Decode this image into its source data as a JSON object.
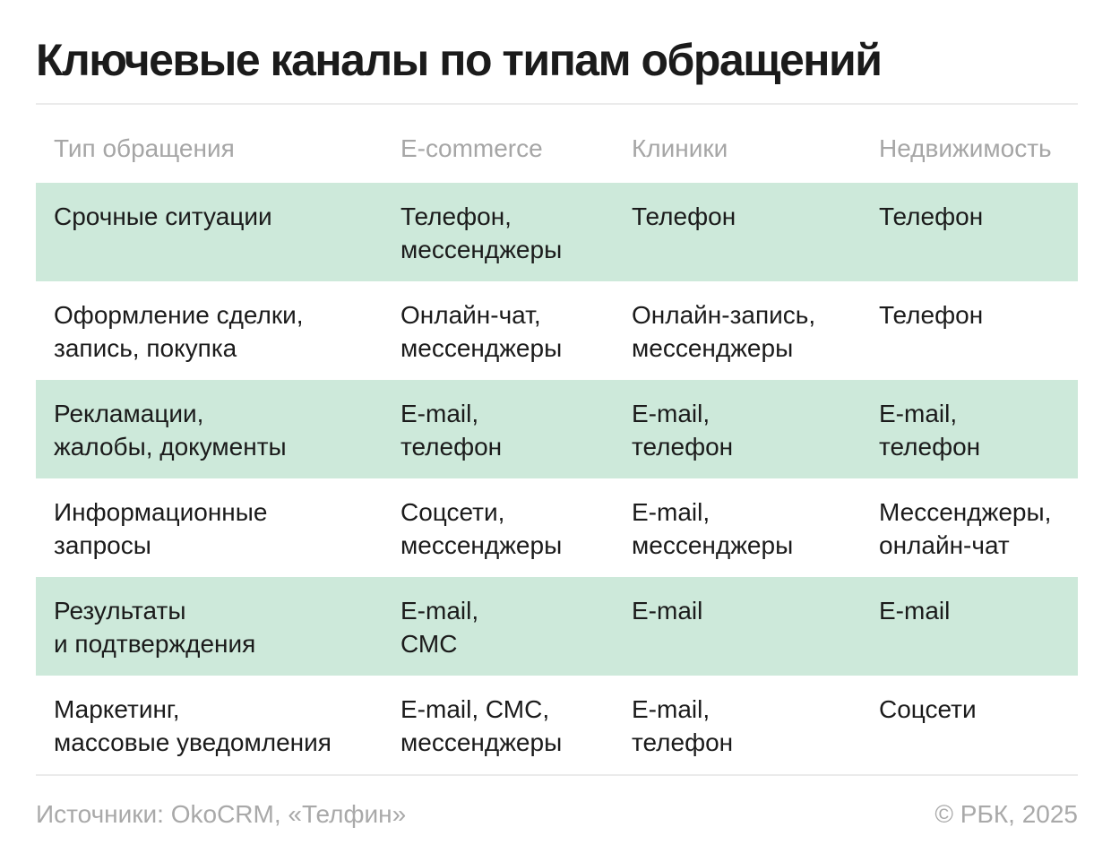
{
  "title": "Ключевые каналы по типам обращений",
  "chart_data": {
    "type": "table",
    "title": "Ключевые каналы по типам обращений",
    "columns": [
      "Тип обращения",
      "E-commerce",
      "Клиники",
      "Недвижимость"
    ],
    "rows": [
      [
        "Срочные ситуации",
        "Телефон,\nмессенджеры",
        "Телефон",
        "Телефон"
      ],
      [
        "Оформление сделки,\nзапись, покупка",
        "Онлайн-чат,\nмессенджеры",
        "Онлайн-запись,\nмессенджеры",
        "Телефон"
      ],
      [
        "Рекламации,\nжалобы, документы",
        "E-mail,\nтелефон",
        "E-mail,\nтелефон",
        "E-mail,\nтелефон"
      ],
      [
        "Информационные\nзапросы",
        "Соцсети,\nмессенджеры",
        "E-mail,\nмессенджеры",
        "Мессенджеры,\nонлайн-чат"
      ],
      [
        "Результаты\nи подтверждения",
        "E-mail,\nСМС",
        "E-mail",
        "E-mail"
      ],
      [
        "Маркетинг,\nмассовые уведомления",
        "E-mail, СМС,\nмессенджеры",
        "E-mail,\nтелефон",
        "Соцсети"
      ]
    ],
    "highlighted_rows": [
      0,
      2,
      4
    ],
    "layout": {
      "zebra_striping": "rows 1, 3, 5 highlighted in mint green",
      "legend": "none",
      "grid": "horizontal dividers above header and below last row only"
    }
  },
  "footer": {
    "source": "Источники: OkoCRM, «Телфин»",
    "copyright": "© РБК, 2025"
  },
  "colors": {
    "highlight_green": "#cde9da",
    "text_dark": "#1b1b1b",
    "text_muted": "#a6a6a6",
    "divider": "#ebebeb",
    "background": "#ffffff"
  }
}
